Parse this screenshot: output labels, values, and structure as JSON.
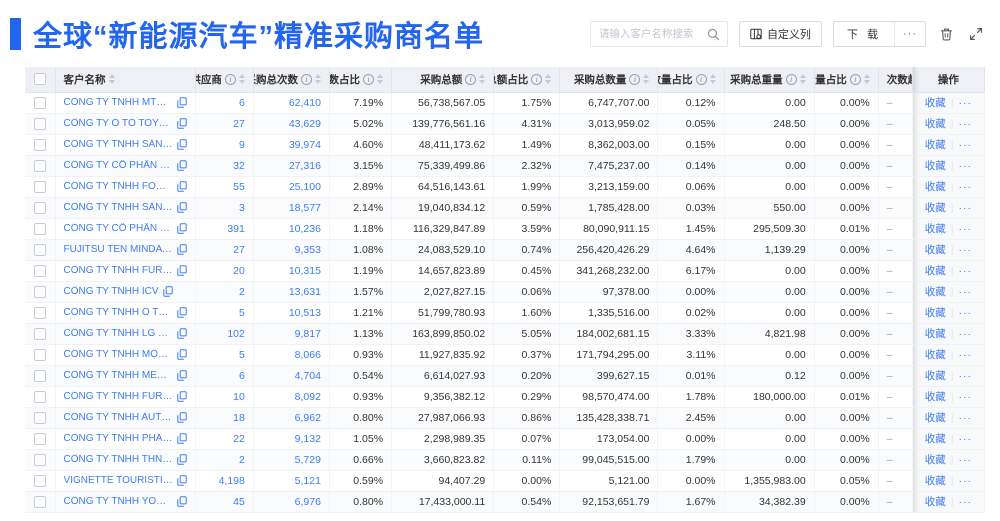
{
  "page": {
    "title": "全球“新能源汽车”精准采购商名单"
  },
  "toolbar": {
    "search_placeholder": "请输入客户名称搜索",
    "customize_columns_label": "自定义列",
    "download_label": "下 载",
    "more_label": "···"
  },
  "colors": {
    "accent": "#2165F1",
    "link": "#3E7BFA",
    "header_bg": "#EEF0F5"
  },
  "table": {
    "columns": [
      {
        "key": "name",
        "label": "客户名称",
        "info": false,
        "sort": true,
        "align": "left"
      },
      {
        "key": "supplier",
        "label": "供应商",
        "info": true,
        "sort": true,
        "align": "right"
      },
      {
        "key": "purchase_count",
        "label": "采购总次数",
        "info": true,
        "sort": true,
        "align": "right"
      },
      {
        "key": "count_pct",
        "label": "次数占比",
        "info": true,
        "sort": true,
        "align": "right"
      },
      {
        "key": "amount",
        "label": "采购总额",
        "info": true,
        "sort": true,
        "align": "right"
      },
      {
        "key": "amount_pct",
        "label": "总额占比",
        "info": true,
        "sort": true,
        "align": "right"
      },
      {
        "key": "qty",
        "label": "采购总数量",
        "info": true,
        "sort": true,
        "align": "right"
      },
      {
        "key": "qty_pct",
        "label": "数量占比",
        "info": true,
        "sort": true,
        "align": "right"
      },
      {
        "key": "weight",
        "label": "采购总重量",
        "info": true,
        "sort": true,
        "align": "right"
      },
      {
        "key": "weight_pct",
        "label": "重量占比",
        "info": true,
        "sort": true,
        "align": "right"
      },
      {
        "key": "trend",
        "label": "次数趋势",
        "info": false,
        "sort": false,
        "align": "left"
      },
      {
        "key": "ops",
        "label": "操作",
        "info": false,
        "sort": false,
        "align": "center"
      }
    ],
    "favorite_label": "收藏",
    "row_more_label": "···",
    "trend_placeholder": "–",
    "rows": [
      {
        "name": "CÔNG TY TNHH MTV SẢN XUẤ...",
        "supplier": "6",
        "purchase_count": "62,410",
        "count_pct": "7.19%",
        "amount": "56,738,567.05",
        "amount_pct": "1.75%",
        "qty": "6,747,707.00",
        "qty_pct": "0.12%",
        "weight": "0.00",
        "weight_pct": "0.00%"
      },
      {
        "name": "CÔNG TY Ô TÔ TOYOTA VIỆT ...",
        "supplier": "27",
        "purchase_count": "43,629",
        "count_pct": "5.02%",
        "amount": "139,776,561.16",
        "amount_pct": "4.31%",
        "qty": "3,013,959.02",
        "qty_pct": "0.05%",
        "weight": "248.50",
        "weight_pct": "0.00%"
      },
      {
        "name": "CÔNG TY TNHH SẢN XUẤT VÀ ...",
        "supplier": "9",
        "purchase_count": "39,974",
        "count_pct": "4.60%",
        "amount": "48,411,173.62",
        "amount_pct": "1.49%",
        "qty": "8,362,003.00",
        "qty_pct": "0.15%",
        "weight": "0.00",
        "weight_pct": "0.00%"
      },
      {
        "name": "CÔNG TY CỔ PHẦN SẢN XUẤT...",
        "supplier": "32",
        "purchase_count": "27,316",
        "count_pct": "3.15%",
        "amount": "75,339,499.86",
        "amount_pct": "2.32%",
        "qty": "7,475,237.00",
        "qty_pct": "0.14%",
        "weight": "0.00",
        "weight_pct": "0.00%"
      },
      {
        "name": "CÔNG TY TNHH FORD VIỆT NAM",
        "supplier": "55",
        "purchase_count": "25,100",
        "count_pct": "2.89%",
        "amount": "64,516,143.61",
        "amount_pct": "1.99%",
        "qty": "3,213,159.00",
        "qty_pct": "0.06%",
        "weight": "0.00",
        "weight_pct": "0.00%"
      },
      {
        "name": "CÔNG TY TNHH SẢN XUẤT VÀ ...",
        "supplier": "3",
        "purchase_count": "18,577",
        "count_pct": "2.14%",
        "amount": "19,040,834.12",
        "amount_pct": "0.59%",
        "qty": "1,785,428.00",
        "qty_pct": "0.03%",
        "weight": "550.00",
        "weight_pct": "0.00%"
      },
      {
        "name": "CÔNG TY CỔ PHẦN SẢN XUẤT...",
        "supplier": "391",
        "purchase_count": "10,236",
        "count_pct": "1.18%",
        "amount": "116,329,847.89",
        "amount_pct": "3.59%",
        "qty": "80,090,911.15",
        "qty_pct": "1.45%",
        "weight": "295,509.30",
        "weight_pct": "0.01%"
      },
      {
        "name": "FUJITSU TEN MINDA INDIA PVT...",
        "supplier": "27",
        "purchase_count": "9,353",
        "count_pct": "1.08%",
        "amount": "24,083,529.10",
        "amount_pct": "0.74%",
        "qty": "256,420,426.29",
        "qty_pct": "4.64%",
        "weight": "1,139.29",
        "weight_pct": "0.00%"
      },
      {
        "name": "CÔNG TY TNHH FURUKAWA A...",
        "supplier": "20",
        "purchase_count": "10,315",
        "count_pct": "1.19%",
        "amount": "14,657,823.89",
        "amount_pct": "0.45%",
        "qty": "341,268,232.00",
        "qty_pct": "6.17%",
        "weight": "0.00",
        "weight_pct": "0.00%"
      },
      {
        "name": "CÔNG TY TNHH ICV",
        "supplier": "2",
        "purchase_count": "13,631",
        "count_pct": "1.57%",
        "amount": "2,027,827.15",
        "amount_pct": "0.06%",
        "qty": "97,378.00",
        "qty_pct": "0.00%",
        "weight": "0.00",
        "weight_pct": "0.00%"
      },
      {
        "name": "CÔNG TY TNHH Ô TÔ MITSUBI...",
        "supplier": "5",
        "purchase_count": "10,513",
        "count_pct": "1.21%",
        "amount": "51,799,780.93",
        "amount_pct": "1.60%",
        "qty": "1,335,516.00",
        "qty_pct": "0.02%",
        "weight": "0.00",
        "weight_pct": "0.00%"
      },
      {
        "name": "CÔNG TY TNHH LG ELECTRON...",
        "supplier": "102",
        "purchase_count": "9,817",
        "count_pct": "1.13%",
        "amount": "163,899,850.02",
        "amount_pct": "5.05%",
        "qty": "184,002,681.15",
        "qty_pct": "3.33%",
        "weight": "4,821.98",
        "weight_pct": "0.00%"
      },
      {
        "name": "CÔNG TY TNHH MỘT THÀNH V...",
        "supplier": "5",
        "purchase_count": "8,066",
        "count_pct": "0.93%",
        "amount": "11,927,835.92",
        "amount_pct": "0.37%",
        "qty": "171,794,295.00",
        "qty_pct": "3.11%",
        "weight": "0.00",
        "weight_pct": "0.00%"
      },
      {
        "name": "CÔNG TY TNHH MERCEDES–B...",
        "supplier": "6",
        "purchase_count": "4,704",
        "count_pct": "0.54%",
        "amount": "6,614,027.93",
        "amount_pct": "0.20%",
        "qty": "399,627.15",
        "qty_pct": "0.01%",
        "weight": "0.12",
        "weight_pct": "0.00%"
      },
      {
        "name": "CÔNG TY TNHH FURUKAWA A...",
        "supplier": "10",
        "purchase_count": "8,092",
        "count_pct": "0.93%",
        "amount": "9,356,382.12",
        "amount_pct": "0.29%",
        "qty": "98,570,474.00",
        "qty_pct": "1.78%",
        "weight": "180,000.00",
        "weight_pct": "0.01%"
      },
      {
        "name": "CÔNG TY TNHH AUTEL VIỆT N...",
        "supplier": "18",
        "purchase_count": "6,962",
        "count_pct": "0.80%",
        "amount": "27,987,066.93",
        "amount_pct": "0.86%",
        "qty": "135,428,338.71",
        "qty_pct": "2.45%",
        "weight": "0.00",
        "weight_pct": "0.00%"
      },
      {
        "name": "CÔNG TY TNHH PHÂN PHỐI T...",
        "supplier": "22",
        "purchase_count": "9,132",
        "count_pct": "1.05%",
        "amount": "2,298,989.35",
        "amount_pct": "0.07%",
        "qty": "173,054.00",
        "qty_pct": "0.00%",
        "weight": "0.00",
        "weight_pct": "0.00%"
      },
      {
        "name": "CÔNG TY TNHH THN AUTOPAR...",
        "supplier": "2",
        "purchase_count": "5,729",
        "count_pct": "0.66%",
        "amount": "3,660,823.82",
        "amount_pct": "0.11%",
        "qty": "99,045,515.00",
        "qty_pct": "1.79%",
        "weight": "0.00",
        "weight_pct": "0.00%"
      },
      {
        "name": "VIGNETTE TOURISTIQUE G UNI...",
        "supplier": "4,198",
        "purchase_count": "5,121",
        "count_pct": "0.59%",
        "amount": "94,407.29",
        "amount_pct": "0.00%",
        "qty": "5,121.00",
        "qty_pct": "0.00%",
        "weight": "1,355,983.00",
        "weight_pct": "0.05%"
      },
      {
        "name": "CÔNG TY TNHH YOKOWO VIỆT...",
        "supplier": "45",
        "purchase_count": "6,976",
        "count_pct": "0.80%",
        "amount": "17,433,000.11",
        "amount_pct": "0.54%",
        "qty": "92,153,651.79",
        "qty_pct": "1.67%",
        "weight": "34,382.39",
        "weight_pct": "0.00%"
      }
    ]
  }
}
